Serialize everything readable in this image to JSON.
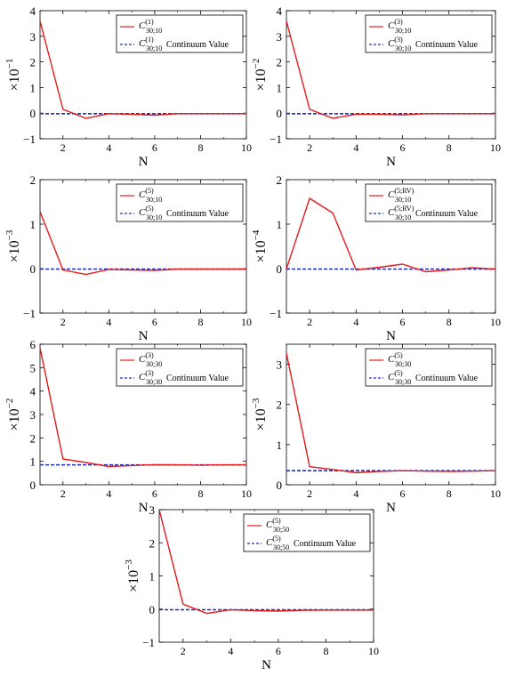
{
  "figure": {
    "colors": {
      "series": "#e41a1c",
      "continuum": "#1f2fbf",
      "axis": "#000000",
      "legend_border": "#000000"
    },
    "continuum_suffix": "Continuum Value"
  },
  "chart_data": [
    {
      "type": "line",
      "id": "C30_10_1",
      "xlabel": "N",
      "ylabel_base": "×10",
      "ylabel_exp": "−1",
      "xlim": [
        1,
        10
      ],
      "ylim": [
        -1,
        4
      ],
      "xticks": [
        2,
        4,
        6,
        8,
        10
      ],
      "yticks": [
        -1,
        0,
        1,
        2,
        3,
        4
      ],
      "xtick_labels": [
        "2",
        "4",
        "6",
        "8",
        "10"
      ],
      "ytick_labels": [
        "−1",
        "0",
        "1",
        "2",
        "3",
        "4"
      ],
      "legend": {
        "sym": "C",
        "sup": "(1)",
        "sub": "30;10"
      },
      "x": [
        1,
        2,
        3,
        4,
        5,
        6,
        7,
        8,
        9,
        10
      ],
      "series": [
        {
          "values": [
            3.6,
            0.15,
            -0.2,
            -0.02,
            -0.05,
            -0.08,
            -0.02,
            -0.02,
            -0.02,
            -0.02
          ]
        }
      ],
      "continuum": -0.02
    },
    {
      "type": "line",
      "id": "C30_10_3",
      "xlabel": "N",
      "ylabel_base": "×10",
      "ylabel_exp": "−2",
      "xlim": [
        1,
        10
      ],
      "ylim": [
        -1,
        4
      ],
      "xticks": [
        2,
        4,
        6,
        8,
        10
      ],
      "yticks": [
        -1,
        0,
        1,
        2,
        3,
        4
      ],
      "xtick_labels": [
        "2",
        "4",
        "6",
        "8",
        "10"
      ],
      "ytick_labels": [
        "−1",
        "0",
        "1",
        "2",
        "3",
        "4"
      ],
      "legend": {
        "sym": "C",
        "sup": "(3)",
        "sub": "30;10"
      },
      "x": [
        1,
        2,
        3,
        4,
        5,
        6,
        7,
        8,
        9,
        10
      ],
      "series": [
        {
          "values": [
            3.6,
            0.15,
            -0.2,
            -0.04,
            -0.05,
            -0.07,
            -0.02,
            -0.02,
            -0.02,
            -0.02
          ]
        }
      ],
      "continuum": -0.02
    },
    {
      "type": "line",
      "id": "C30_10_5",
      "xlabel": "N",
      "ylabel_base": "×10",
      "ylabel_exp": "−3",
      "xlim": [
        1,
        10
      ],
      "ylim": [
        -1,
        2
      ],
      "xticks": [
        2,
        4,
        6,
        8,
        10
      ],
      "yticks": [
        -1,
        0,
        1,
        2
      ],
      "xtick_labels": [
        "2",
        "4",
        "6",
        "8",
        "10"
      ],
      "ytick_labels": [
        "−1",
        "0",
        "1",
        "2"
      ],
      "legend": {
        "sym": "C",
        "sup": "(5)",
        "sub": "30;10"
      },
      "x": [
        1,
        2,
        3,
        4,
        5,
        6,
        7,
        8,
        9,
        10
      ],
      "series": [
        {
          "values": [
            1.28,
            -0.03,
            -0.13,
            -0.02,
            -0.03,
            -0.04,
            -0.01,
            -0.01,
            -0.01,
            -0.01
          ]
        }
      ],
      "continuum": -0.01
    },
    {
      "type": "line",
      "id": "C30_10_5RV",
      "xlabel": "N",
      "ylabel_base": "×10",
      "ylabel_exp": "−4",
      "xlim": [
        1,
        10
      ],
      "ylim": [
        -1,
        2
      ],
      "xticks": [
        2,
        4,
        6,
        8,
        10
      ],
      "yticks": [
        -1,
        0,
        1,
        2
      ],
      "xtick_labels": [
        "2",
        "4",
        "6",
        "8",
        "10"
      ],
      "ytick_labels": [
        "−1",
        "0",
        "1",
        "2"
      ],
      "legend": {
        "sym": "C",
        "sup": "(5;RV)",
        "sub": "30;10"
      },
      "x": [
        1,
        2,
        3,
        4,
        5,
        6,
        7,
        8,
        9,
        10
      ],
      "series": [
        {
          "values": [
            -0.01,
            1.58,
            1.25,
            -0.03,
            0.03,
            0.1,
            -0.07,
            -0.03,
            0.02,
            -0.01
          ]
        }
      ],
      "continuum": -0.01
    },
    {
      "type": "line",
      "id": "C30_30_3",
      "xlabel": "N",
      "ylabel_base": "×10",
      "ylabel_exp": "−2",
      "xlim": [
        1,
        10
      ],
      "ylim": [
        0,
        6
      ],
      "xticks": [
        2,
        4,
        6,
        8,
        10
      ],
      "yticks": [
        0,
        1,
        2,
        3,
        4,
        5,
        6
      ],
      "xtick_labels": [
        "2",
        "4",
        "6",
        "8",
        "10"
      ],
      "ytick_labels": [
        "0",
        "1",
        "2",
        "3",
        "4",
        "5",
        "6"
      ],
      "legend": {
        "sym": "C",
        "sup": "(3)",
        "sub": "30;30"
      },
      "x": [
        1,
        2,
        3,
        4,
        5,
        6,
        7,
        8,
        9,
        10
      ],
      "series": [
        {
          "values": [
            5.85,
            1.1,
            0.95,
            0.78,
            0.82,
            0.86,
            0.85,
            0.83,
            0.85,
            0.85
          ]
        }
      ],
      "continuum": 0.85
    },
    {
      "type": "line",
      "id": "C30_30_5",
      "xlabel": "N",
      "ylabel_base": "×10",
      "ylabel_exp": "−3",
      "xlim": [
        1,
        10
      ],
      "ylim": [
        0,
        3.5
      ],
      "xticks": [
        2,
        4,
        6,
        8,
        10
      ],
      "yticks": [
        0,
        1,
        2,
        3
      ],
      "xtick_labels": [
        "2",
        "4",
        "6",
        "8",
        "10"
      ],
      "ytick_labels": [
        "0",
        "1",
        "2",
        "3"
      ],
      "legend": {
        "sym": "C",
        "sup": "(5)",
        "sub": "30;30"
      },
      "x": [
        1,
        2,
        3,
        4,
        5,
        6,
        7,
        8,
        9,
        10
      ],
      "series": [
        {
          "values": [
            3.28,
            0.45,
            0.38,
            0.3,
            0.33,
            0.35,
            0.34,
            0.33,
            0.34,
            0.35
          ]
        }
      ],
      "continuum": 0.35
    },
    {
      "type": "line",
      "id": "C30_50_5",
      "xlabel": "N",
      "ylabel_base": "×10",
      "ylabel_exp": "−3",
      "xlim": [
        1,
        10
      ],
      "ylim": [
        -1,
        3
      ],
      "xticks": [
        2,
        4,
        6,
        8,
        10
      ],
      "yticks": [
        -1,
        0,
        1,
        2,
        3
      ],
      "xtick_labels": [
        "2",
        "4",
        "6",
        "8",
        "10"
      ],
      "ytick_labels": [
        "−1",
        "0",
        "1",
        "2",
        "3"
      ],
      "legend": {
        "sym": "C",
        "sup": "(5)",
        "sub": "30;50"
      },
      "x": [
        1,
        2,
        3,
        4,
        5,
        6,
        7,
        8,
        9,
        10
      ],
      "series": [
        {
          "values": [
            3.0,
            0.15,
            -0.13,
            -0.02,
            -0.05,
            -0.06,
            -0.04,
            -0.03,
            -0.03,
            -0.03
          ]
        }
      ],
      "continuum": -0.02
    }
  ]
}
